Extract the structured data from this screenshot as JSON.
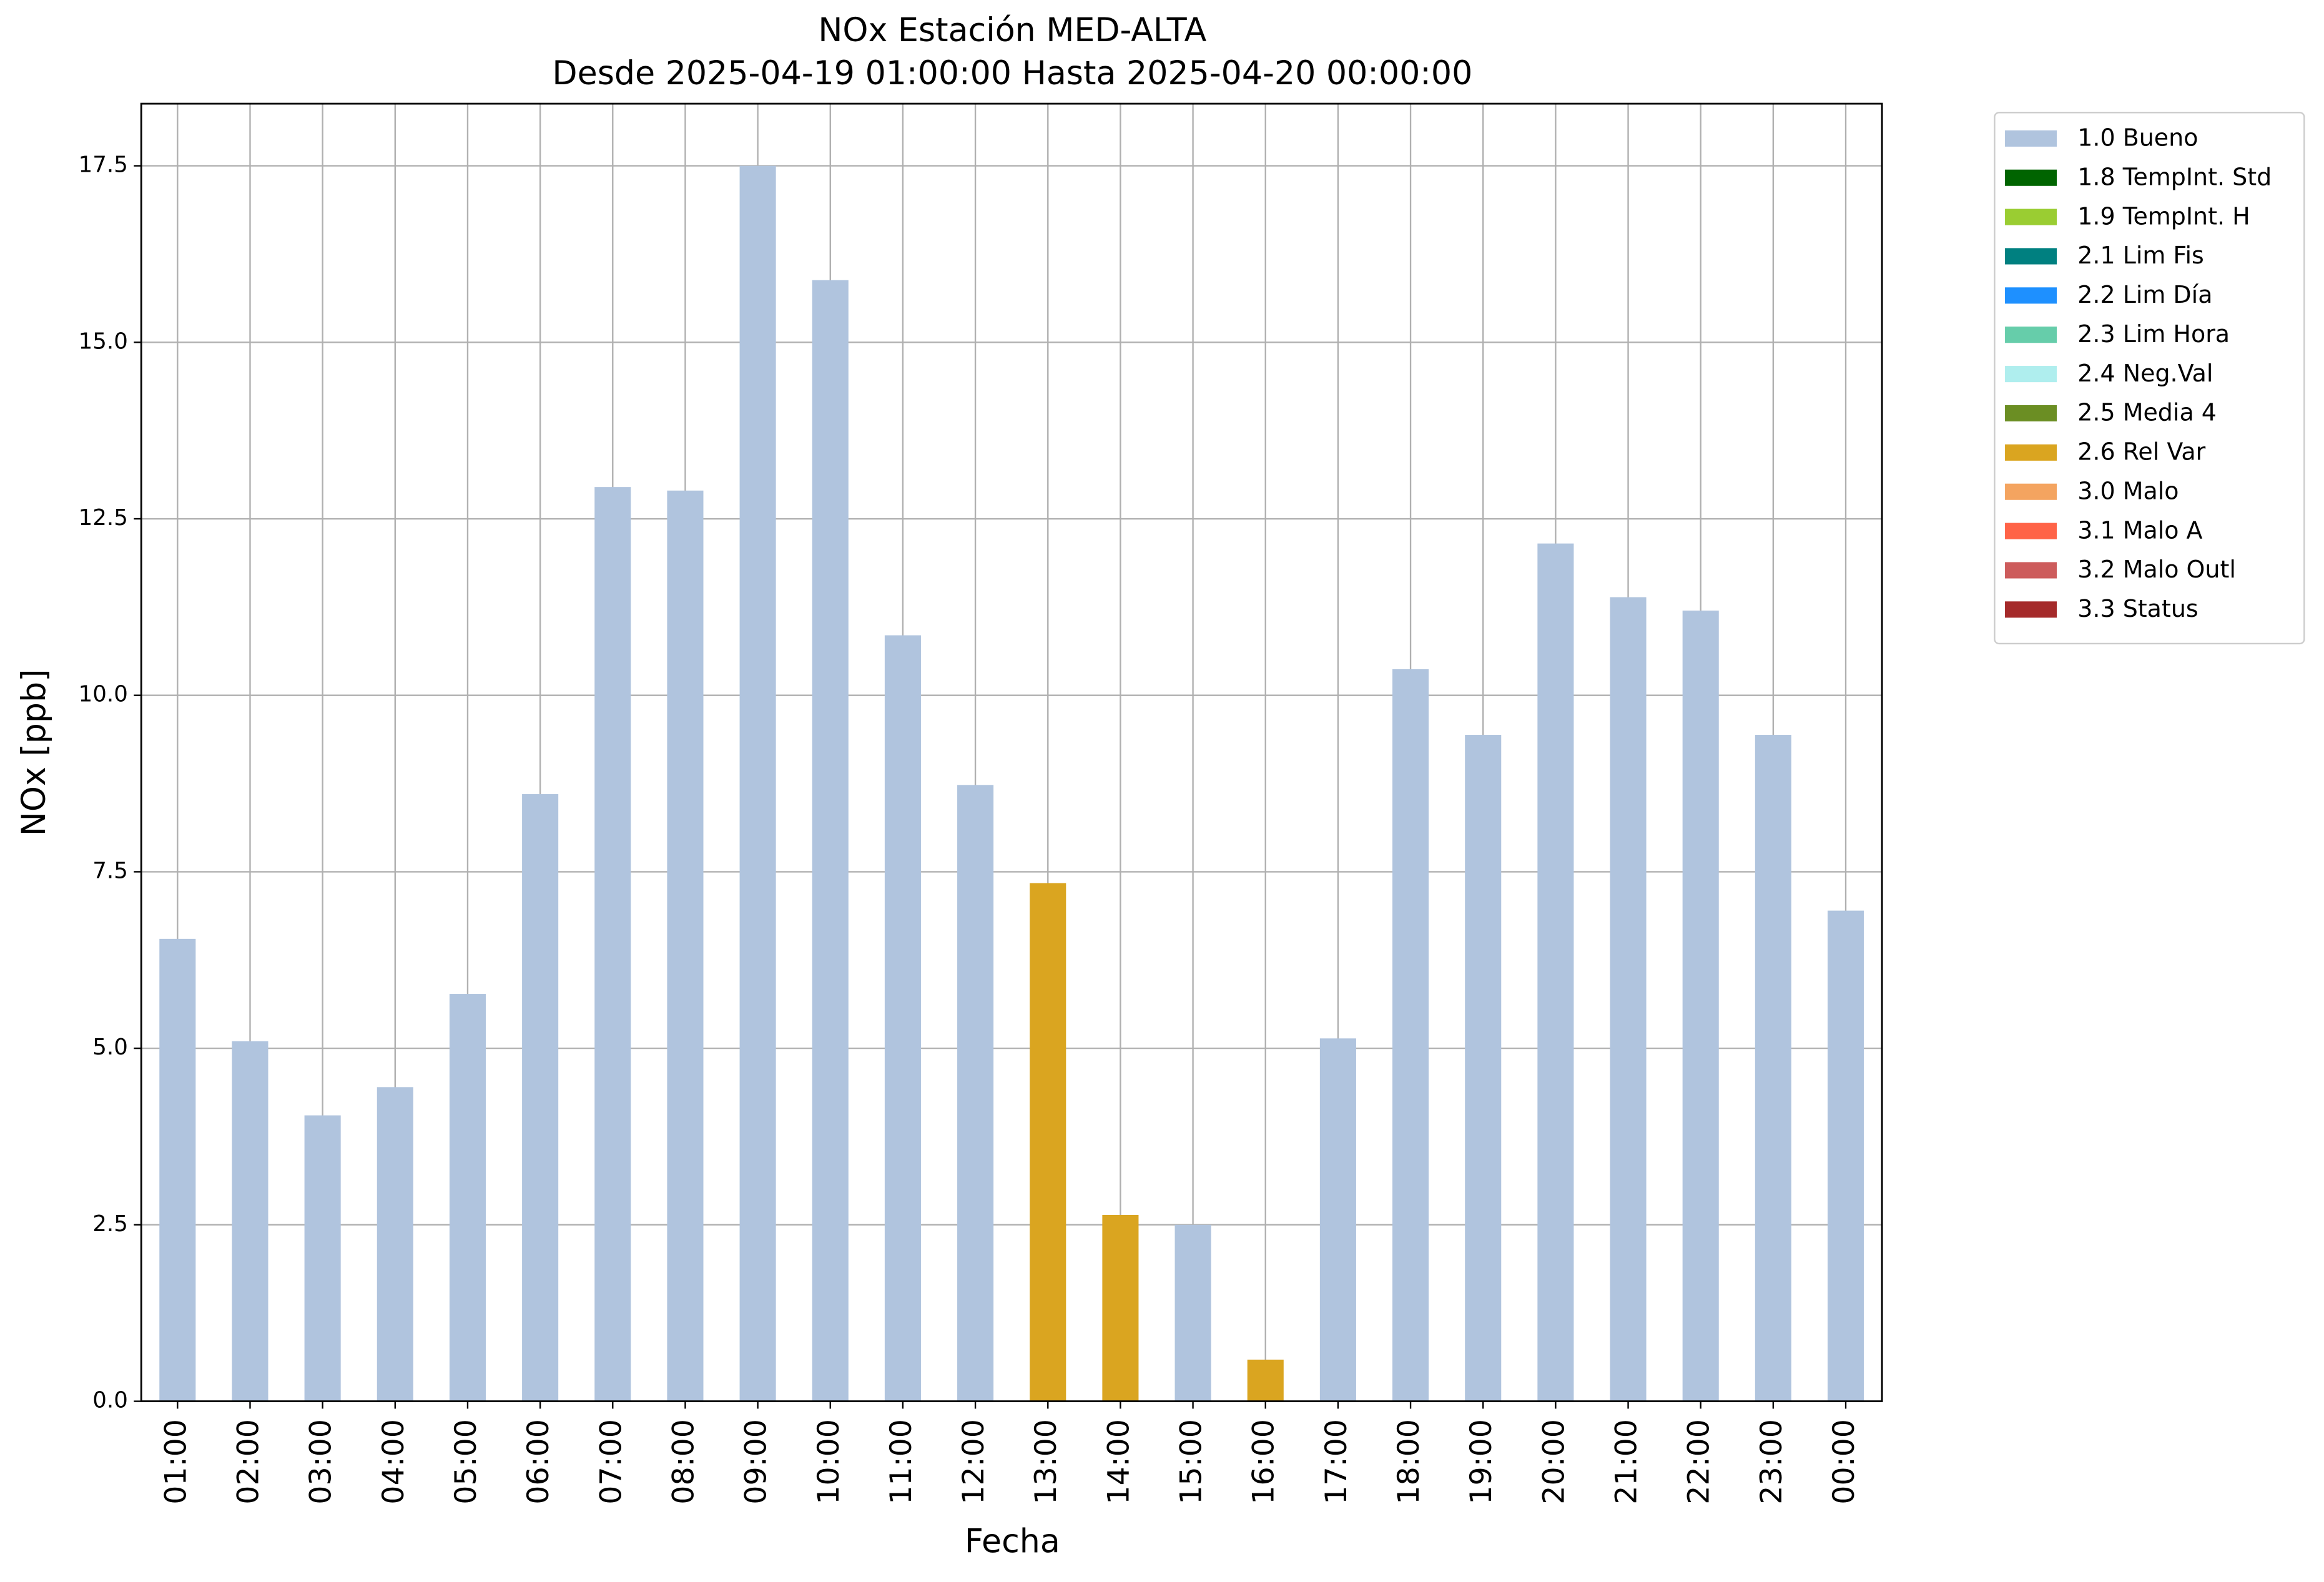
{
  "chart_data": {
    "type": "stacked_bar",
    "title": "NOx Estación MED-ALTA",
    "subtitle": "Desde 2025-04-19 01:00:00 Hasta 2025-04-20 00:00:00",
    "xlabel": "Fecha",
    "ylabel": "NOx [ppb]",
    "categories": [
      "01:00",
      "02:00",
      "03:00",
      "04:00",
      "05:00",
      "06:00",
      "07:00",
      "08:00",
      "09:00",
      "10:00",
      "11:00",
      "12:00",
      "13:00",
      "14:00",
      "15:00",
      "16:00",
      "17:00",
      "18:00",
      "19:00",
      "20:00",
      "21:00",
      "22:00",
      "23:00",
      "00:00"
    ],
    "series": [
      {
        "name": "1.0 Bueno",
        "color": "#b0c4de",
        "values": [
          6.55,
          5.1,
          4.05,
          4.45,
          5.77,
          8.6,
          12.95,
          12.9,
          17.5,
          15.88,
          10.85,
          8.73,
          null,
          null,
          2.5,
          null,
          5.14,
          10.37,
          9.44,
          12.15,
          11.39,
          11.2,
          9.44,
          6.95
        ]
      },
      {
        "name": "1.8 TempInt. Std",
        "color": "#006400",
        "values": [
          null,
          null,
          null,
          null,
          null,
          null,
          null,
          null,
          null,
          null,
          null,
          null,
          null,
          null,
          null,
          null,
          null,
          null,
          null,
          null,
          null,
          null,
          null,
          null
        ]
      },
      {
        "name": "1.9 TempInt. H",
        "color": "#9acd32",
        "values": [
          null,
          null,
          null,
          null,
          null,
          null,
          null,
          null,
          null,
          null,
          null,
          null,
          null,
          null,
          null,
          null,
          null,
          null,
          null,
          null,
          null,
          null,
          null,
          null
        ]
      },
      {
        "name": "2.1 Lim Fis",
        "color": "#008080",
        "values": [
          null,
          null,
          null,
          null,
          null,
          null,
          null,
          null,
          null,
          null,
          null,
          null,
          null,
          null,
          null,
          null,
          null,
          null,
          null,
          null,
          null,
          null,
          null,
          null
        ]
      },
      {
        "name": "2.2 Lim Día",
        "color": "#1e90ff",
        "values": [
          null,
          null,
          null,
          null,
          null,
          null,
          null,
          null,
          null,
          null,
          null,
          null,
          null,
          null,
          null,
          null,
          null,
          null,
          null,
          null,
          null,
          null,
          null,
          null
        ]
      },
      {
        "name": "2.3 Lim Hora",
        "color": "#66cdaa",
        "values": [
          null,
          null,
          null,
          null,
          null,
          null,
          null,
          null,
          null,
          null,
          null,
          null,
          null,
          null,
          null,
          null,
          null,
          null,
          null,
          null,
          null,
          null,
          null,
          null
        ]
      },
      {
        "name": "2.4 Neg.Val",
        "color": "#afeeee",
        "values": [
          null,
          null,
          null,
          null,
          null,
          null,
          null,
          null,
          null,
          null,
          null,
          null,
          null,
          null,
          null,
          null,
          null,
          null,
          null,
          null,
          null,
          null,
          null,
          null
        ]
      },
      {
        "name": "2.5 Media 4",
        "color": "#6b8e23",
        "values": [
          null,
          null,
          null,
          null,
          null,
          null,
          null,
          null,
          null,
          null,
          null,
          null,
          null,
          null,
          null,
          null,
          null,
          null,
          null,
          null,
          null,
          null,
          null,
          null
        ]
      },
      {
        "name": "2.6 Rel Var",
        "color": "#daa520",
        "values": [
          null,
          null,
          null,
          null,
          null,
          null,
          null,
          null,
          null,
          null,
          null,
          null,
          7.34,
          2.64,
          null,
          0.59,
          null,
          null,
          null,
          null,
          null,
          null,
          null,
          null
        ]
      },
      {
        "name": "3.0 Malo",
        "color": "#f4a460",
        "values": [
          null,
          null,
          null,
          null,
          null,
          null,
          null,
          null,
          null,
          null,
          null,
          null,
          null,
          null,
          null,
          null,
          null,
          null,
          null,
          null,
          null,
          null,
          null,
          null
        ]
      },
      {
        "name": "3.1 Malo A",
        "color": "#ff6347",
        "values": [
          null,
          null,
          null,
          null,
          null,
          null,
          null,
          null,
          null,
          null,
          null,
          null,
          null,
          null,
          null,
          null,
          null,
          null,
          null,
          null,
          null,
          null,
          null,
          null
        ]
      },
      {
        "name": "3.2 Malo Outl",
        "color": "#cd5c5c",
        "values": [
          null,
          null,
          null,
          null,
          null,
          null,
          null,
          null,
          null,
          null,
          null,
          null,
          null,
          null,
          null,
          null,
          null,
          null,
          null,
          null,
          null,
          null,
          null,
          null
        ]
      },
      {
        "name": "3.3 Status",
        "color": "#a52a2a",
        "values": [
          null,
          null,
          null,
          null,
          null,
          null,
          null,
          null,
          null,
          null,
          null,
          null,
          null,
          null,
          null,
          null,
          null,
          null,
          null,
          null,
          null,
          null,
          null,
          null
        ]
      }
    ],
    "ylim": [
      0,
      18.38
    ],
    "yticks": [
      {
        "value": 0,
        "label": "0.0"
      },
      2.5,
      {
        "value": 5,
        "label": "5.0"
      },
      7.5,
      {
        "value": 10,
        "label": "10.0"
      },
      12.5,
      {
        "value": 15,
        "label": "15.0"
      },
      17.5
    ],
    "grid": true,
    "legend": "right"
  }
}
